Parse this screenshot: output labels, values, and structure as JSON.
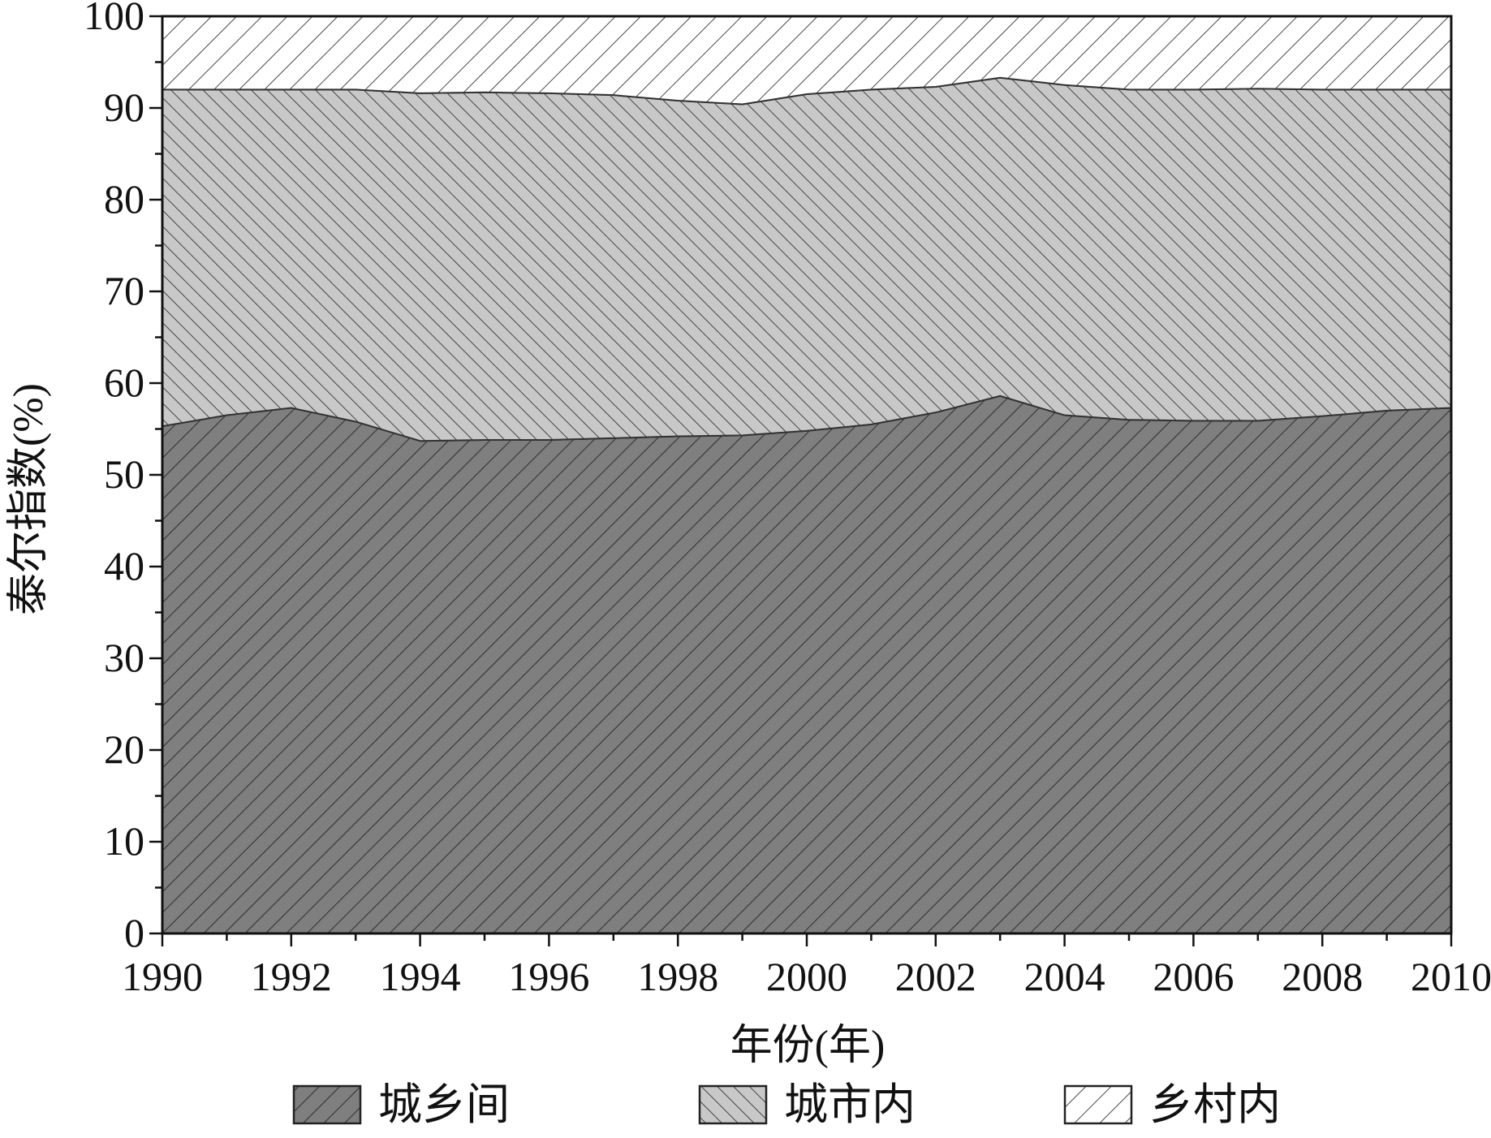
{
  "chart_data": {
    "type": "area",
    "stacked": true,
    "title": "",
    "xlabel": "年份(年)",
    "ylabel": "泰尔指数(%)",
    "xlim": [
      1990,
      2010
    ],
    "ylim": [
      0,
      100
    ],
    "x_ticks": [
      "1990",
      "1992",
      "1994",
      "1996",
      "1998",
      "2000",
      "2002",
      "2004",
      "2006",
      "2008",
      "2010"
    ],
    "y_ticks": [
      "0",
      "10",
      "20",
      "30",
      "40",
      "50",
      "60",
      "70",
      "80",
      "90",
      "100"
    ],
    "legend_position": "bottom",
    "x": [
      1990,
      1991,
      1992,
      1993,
      1994,
      1995,
      1996,
      1997,
      1998,
      1999,
      2000,
      2001,
      2002,
      2003,
      2004,
      2005,
      2006,
      2007,
      2008,
      2009,
      2010
    ],
    "series": [
      {
        "name": "城乡间",
        "color": "#7f7f7f",
        "hatch": "forward",
        "values": [
          55.3,
          56.5,
          57.3,
          55.8,
          53.7,
          53.8,
          53.8,
          54.0,
          54.2,
          54.3,
          54.8,
          55.5,
          56.8,
          58.6,
          56.5,
          56.0,
          55.9,
          55.9,
          56.4,
          57.0,
          57.3
        ]
      },
      {
        "name": "城市内",
        "color": "#c8c8c8",
        "hatch": "backward",
        "values": [
          36.7,
          35.5,
          34.7,
          36.2,
          37.9,
          37.9,
          37.8,
          37.4,
          36.6,
          36.1,
          36.7,
          36.5,
          35.5,
          34.7,
          36.0,
          36.0,
          36.1,
          36.2,
          35.6,
          35.0,
          34.7
        ]
      },
      {
        "name": "乡村内",
        "color": "#ffffff",
        "hatch": "forward",
        "values": [
          8.0,
          8.0,
          8.0,
          8.0,
          8.4,
          8.3,
          8.4,
          8.6,
          9.2,
          9.6,
          8.5,
          8.0,
          7.7,
          6.7,
          7.5,
          8.0,
          8.0,
          7.9,
          8.0,
          8.0,
          8.0
        ]
      }
    ]
  }
}
